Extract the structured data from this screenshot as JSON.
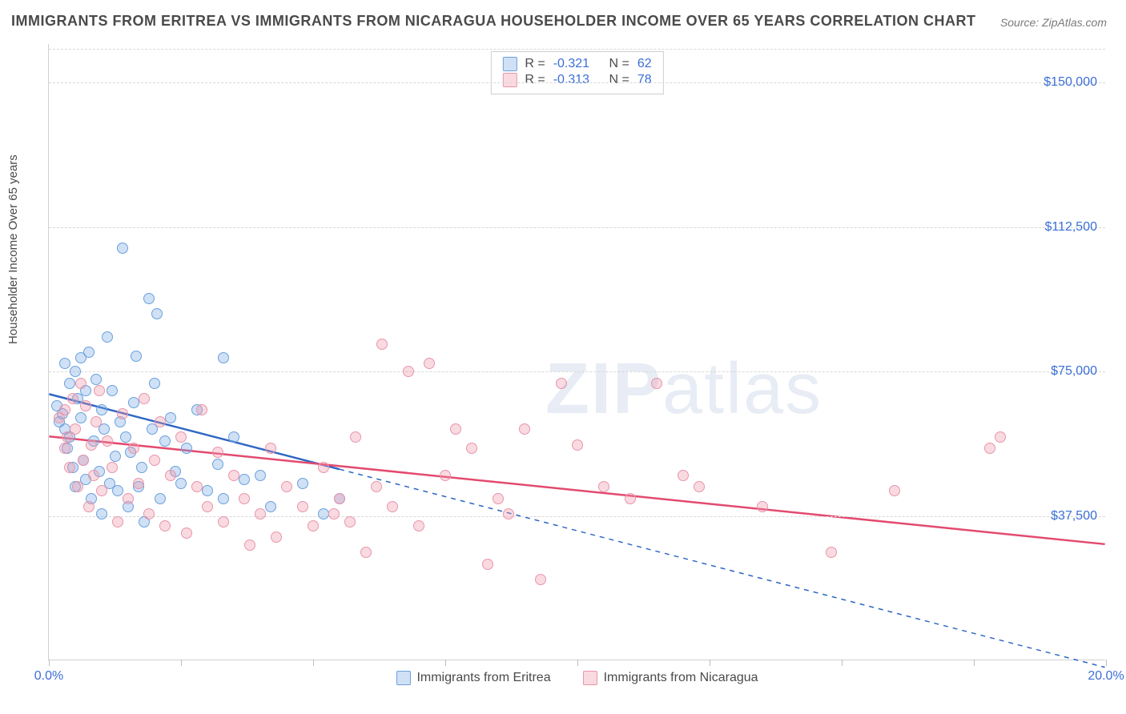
{
  "title": "IMMIGRANTS FROM ERITREA VS IMMIGRANTS FROM NICARAGUA HOUSEHOLDER INCOME OVER 65 YEARS CORRELATION CHART",
  "source": "Source: ZipAtlas.com",
  "ylabel": "Householder Income Over 65 years",
  "watermark_a": "ZIP",
  "watermark_b": "atlas",
  "chart": {
    "type": "scatter",
    "xlim": [
      0,
      20
    ],
    "ylim": [
      0,
      160000
    ],
    "x_tick_step": 2.5,
    "x_tick_labels": {
      "0": "0.0%",
      "20": "20.0%"
    },
    "y_ticks": [
      37500,
      75000,
      112500,
      150000
    ],
    "y_tick_labels": [
      "$37,500",
      "$75,000",
      "$112,500",
      "$150,000"
    ],
    "grid_color": "#d8d8d8",
    "background_color": "#ffffff",
    "series": [
      {
        "name": "Immigrants from Eritrea",
        "fill": "rgba(120,170,230,0.35)",
        "stroke": "#6aa0dd",
        "line_color": "#2f66c4",
        "line_width": 2.5,
        "R_label": "R =",
        "R": "-0.321",
        "N_label": "N =",
        "N": "62",
        "trend": {
          "x1": 0,
          "y1": 69000,
          "x2": 20,
          "y2": -2000,
          "solid_until_x": 5.5
        },
        "points": [
          [
            0.15,
            66000
          ],
          [
            0.2,
            62000
          ],
          [
            0.25,
            64000
          ],
          [
            0.3,
            60000
          ],
          [
            0.3,
            77000
          ],
          [
            0.35,
            55000
          ],
          [
            0.4,
            58000
          ],
          [
            0.4,
            72000
          ],
          [
            0.45,
            50000
          ],
          [
            0.5,
            75000
          ],
          [
            0.5,
            45000
          ],
          [
            0.55,
            68000
          ],
          [
            0.6,
            63000
          ],
          [
            0.6,
            78500
          ],
          [
            0.65,
            52000
          ],
          [
            0.7,
            47000
          ],
          [
            0.7,
            70000
          ],
          [
            0.75,
            80000
          ],
          [
            0.8,
            42000
          ],
          [
            0.85,
            57000
          ],
          [
            0.9,
            73000
          ],
          [
            0.95,
            49000
          ],
          [
            1.0,
            65000
          ],
          [
            1.0,
            38000
          ],
          [
            1.05,
            60000
          ],
          [
            1.1,
            84000
          ],
          [
            1.15,
            46000
          ],
          [
            1.2,
            70000
          ],
          [
            1.25,
            53000
          ],
          [
            1.3,
            44000
          ],
          [
            1.35,
            62000
          ],
          [
            1.4,
            107000
          ],
          [
            1.45,
            58000
          ],
          [
            1.5,
            40000
          ],
          [
            1.55,
            54000
          ],
          [
            1.6,
            67000
          ],
          [
            1.65,
            79000
          ],
          [
            1.7,
            45000
          ],
          [
            1.75,
            50000
          ],
          [
            1.8,
            36000
          ],
          [
            1.9,
            94000
          ],
          [
            1.95,
            60000
          ],
          [
            2.0,
            72000
          ],
          [
            2.05,
            90000
          ],
          [
            2.1,
            42000
          ],
          [
            2.2,
            57000
          ],
          [
            2.3,
            63000
          ],
          [
            2.4,
            49000
          ],
          [
            2.5,
            46000
          ],
          [
            2.6,
            55000
          ],
          [
            2.8,
            65000
          ],
          [
            3.0,
            44000
          ],
          [
            3.2,
            51000
          ],
          [
            3.3,
            78500
          ],
          [
            3.3,
            42000
          ],
          [
            3.5,
            58000
          ],
          [
            3.7,
            47000
          ],
          [
            4.0,
            48000
          ],
          [
            4.2,
            40000
          ],
          [
            4.8,
            46000
          ],
          [
            5.2,
            38000
          ],
          [
            5.5,
            42000
          ]
        ]
      },
      {
        "name": "Immigrants from Nicaragua",
        "fill": "rgba(240,150,170,0.35)",
        "stroke": "#e895aa",
        "line_color": "#e34a6f",
        "line_width": 2.5,
        "R_label": "R =",
        "R": "-0.313",
        "N_label": "N =",
        "N": "78",
        "trend": {
          "x1": 0,
          "y1": 58000,
          "x2": 20,
          "y2": 30000,
          "solid_until_x": 20
        },
        "points": [
          [
            0.2,
            63000
          ],
          [
            0.3,
            55000
          ],
          [
            0.3,
            65000
          ],
          [
            0.35,
            58000
          ],
          [
            0.4,
            50000
          ],
          [
            0.45,
            68000
          ],
          [
            0.5,
            60000
          ],
          [
            0.55,
            45000
          ],
          [
            0.6,
            72000
          ],
          [
            0.65,
            52000
          ],
          [
            0.7,
            66000
          ],
          [
            0.75,
            40000
          ],
          [
            0.8,
            56000
          ],
          [
            0.85,
            48000
          ],
          [
            0.9,
            62000
          ],
          [
            0.95,
            70000
          ],
          [
            1.0,
            44000
          ],
          [
            1.1,
            57000
          ],
          [
            1.2,
            50000
          ],
          [
            1.3,
            36000
          ],
          [
            1.4,
            64000
          ],
          [
            1.5,
            42000
          ],
          [
            1.6,
            55000
          ],
          [
            1.7,
            46000
          ],
          [
            1.8,
            68000
          ],
          [
            1.9,
            38000
          ],
          [
            2.0,
            52000
          ],
          [
            2.1,
            62000
          ],
          [
            2.2,
            35000
          ],
          [
            2.3,
            48000
          ],
          [
            2.5,
            58000
          ],
          [
            2.6,
            33000
          ],
          [
            2.8,
            45000
          ],
          [
            2.9,
            65000
          ],
          [
            3.0,
            40000
          ],
          [
            3.2,
            54000
          ],
          [
            3.3,
            36000
          ],
          [
            3.5,
            48000
          ],
          [
            3.7,
            42000
          ],
          [
            3.8,
            30000
          ],
          [
            4.0,
            38000
          ],
          [
            4.2,
            55000
          ],
          [
            4.3,
            32000
          ],
          [
            4.5,
            45000
          ],
          [
            4.8,
            40000
          ],
          [
            5.0,
            35000
          ],
          [
            5.2,
            50000
          ],
          [
            5.4,
            38000
          ],
          [
            5.5,
            42000
          ],
          [
            5.7,
            36000
          ],
          [
            5.8,
            58000
          ],
          [
            6.0,
            28000
          ],
          [
            6.2,
            45000
          ],
          [
            6.3,
            82000
          ],
          [
            6.5,
            40000
          ],
          [
            6.8,
            75000
          ],
          [
            7.0,
            35000
          ],
          [
            7.2,
            77000
          ],
          [
            7.5,
            48000
          ],
          [
            7.7,
            60000
          ],
          [
            8.0,
            55000
          ],
          [
            8.3,
            25000
          ],
          [
            8.5,
            42000
          ],
          [
            8.7,
            38000
          ],
          [
            9.0,
            60000
          ],
          [
            9.3,
            21000
          ],
          [
            9.7,
            72000
          ],
          [
            10.0,
            56000
          ],
          [
            10.5,
            45000
          ],
          [
            11.0,
            42000
          ],
          [
            11.5,
            72000
          ],
          [
            12.0,
            48000
          ],
          [
            12.3,
            45000
          ],
          [
            13.5,
            40000
          ],
          [
            14.8,
            28000
          ],
          [
            16.0,
            44000
          ],
          [
            17.8,
            55000
          ],
          [
            18.0,
            58000
          ]
        ]
      }
    ]
  }
}
